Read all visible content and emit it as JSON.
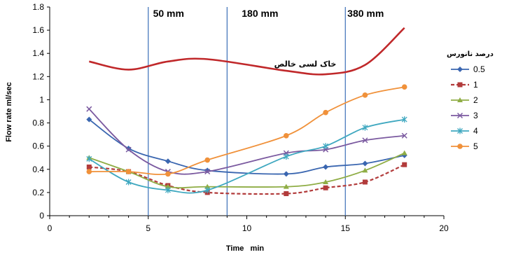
{
  "chart_data": {
    "type": "line",
    "title": "",
    "xlabel": "Time   min",
    "ylabel": "Flow rate  ml/sec",
    "xlim": [
      0,
      20
    ],
    "ylim": [
      0,
      1.8
    ],
    "x_ticks": [
      "0",
      "5",
      "10",
      "15",
      "20"
    ],
    "y_ticks": [
      "0",
      "0.2",
      "0.4",
      "0.6",
      "0.8",
      "1",
      "1.2",
      "1.4",
      "1.6",
      "1.8"
    ],
    "grid": false,
    "legend_position": "right",
    "legend_title": "درصد نانورس",
    "x": [
      2,
      4,
      6,
      8,
      12,
      14,
      16,
      18
    ],
    "series": [
      {
        "name": "0.5",
        "color": "#3a66b0",
        "marker": "diamond",
        "dash": false,
        "values": [
          0.83,
          0.58,
          0.47,
          0.39,
          0.36,
          0.42,
          0.45,
          0.52
        ]
      },
      {
        "name": "1",
        "color": "#b23b3b",
        "marker": "square",
        "dash": true,
        "values": [
          0.42,
          0.38,
          0.26,
          0.2,
          0.19,
          0.24,
          0.29,
          0.44
        ]
      },
      {
        "name": "2",
        "color": "#8fad45",
        "marker": "triangle",
        "dash": false,
        "values": [
          0.5,
          0.38,
          0.25,
          0.25,
          0.25,
          0.29,
          0.39,
          0.54
        ]
      },
      {
        "name": "3",
        "color": "#7b5aa0",
        "marker": "x",
        "dash": false,
        "values": [
          0.92,
          0.57,
          0.38,
          0.38,
          0.54,
          0.57,
          0.65,
          0.69
        ]
      },
      {
        "name": "4",
        "color": "#3fa8c0",
        "marker": "star",
        "dash": false,
        "values": [
          0.49,
          0.29,
          0.22,
          0.22,
          0.51,
          0.6,
          0.76,
          0.83
        ]
      },
      {
        "name": "5",
        "color": "#f0913a",
        "marker": "circle",
        "dash": false,
        "values": [
          0.38,
          0.38,
          0.36,
          0.48,
          0.69,
          0.89,
          1.04,
          1.11
        ]
      }
    ],
    "reference_curve": {
      "label": "خاک لسی خالص",
      "color": "#c0282a",
      "x": [
        2,
        4,
        6,
        8,
        12,
        14,
        16,
        18
      ],
      "values": [
        1.33,
        1.26,
        1.33,
        1.35,
        1.25,
        1.22,
        1.3,
        1.62
      ]
    },
    "vertical_lines": [
      {
        "x": 5,
        "label": "50 mm"
      },
      {
        "x": 9,
        "label": "180 mm"
      },
      {
        "x": 15,
        "label": "380 mm"
      }
    ]
  }
}
